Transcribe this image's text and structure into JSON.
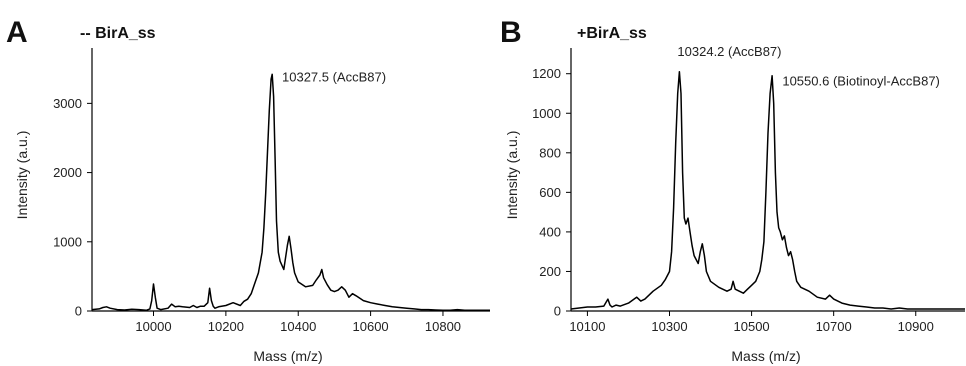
{
  "chart_data": [
    {
      "type": "line",
      "panel_label": "A",
      "title": "-- BirA_ss",
      "xlabel": "Mass (m/z)",
      "ylabel": "Intensity (a.u.)",
      "xlim": [
        9830,
        10930
      ],
      "ylim": [
        0,
        3800
      ],
      "xticks": [
        10000,
        10200,
        10400,
        10600,
        10800
      ],
      "yticks": [
        0,
        1000,
        2000,
        3000
      ],
      "grid": false,
      "annotations": [
        {
          "text": "10327.5 (AccB87)",
          "x": 10327.5,
          "y": 3400
        }
      ],
      "series": [
        {
          "x": [
            9830,
            9850,
            9860,
            9870,
            9880,
            9900,
            9920,
            9940,
            9960,
            9980,
            9990,
            9995,
            10000,
            10005,
            10010,
            10020,
            10040,
            10050,
            10060,
            10070,
            10080,
            10100,
            10110,
            10120,
            10130,
            10140,
            10150,
            10155,
            10160,
            10165,
            10170,
            10180,
            10200,
            10220,
            10240,
            10250,
            10260,
            10270,
            10280,
            10290,
            10300,
            10305,
            10310,
            10315,
            10320,
            10325,
            10328,
            10332,
            10336,
            10340,
            10345,
            10350,
            10360,
            10370,
            10375,
            10380,
            10385,
            10390,
            10400,
            10420,
            10440,
            10450,
            10460,
            10465,
            10470,
            10480,
            10490,
            10500,
            10510,
            10520,
            10530,
            10540,
            10550,
            10560,
            10580,
            10600,
            10620,
            10640,
            10660,
            10680,
            10700,
            10720,
            10740,
            10760,
            10780,
            10800,
            10820,
            10840,
            10860,
            10880,
            10900,
            10930
          ],
          "y": [
            20,
            30,
            50,
            60,
            40,
            20,
            15,
            25,
            20,
            10,
            30,
            150,
            390,
            200,
            40,
            20,
            40,
            100,
            60,
            70,
            60,
            50,
            80,
            50,
            70,
            70,
            120,
            330,
            150,
            70,
            40,
            60,
            80,
            120,
            80,
            140,
            170,
            250,
            400,
            550,
            850,
            1200,
            1700,
            2300,
            2900,
            3350,
            3420,
            3100,
            2200,
            1300,
            850,
            720,
            600,
            950,
            1080,
            900,
            700,
            550,
            420,
            350,
            370,
            450,
            520,
            600,
            480,
            380,
            300,
            280,
            300,
            350,
            300,
            200,
            250,
            220,
            150,
            120,
            100,
            80,
            60,
            50,
            40,
            30,
            20,
            20,
            15,
            10,
            10,
            20,
            10,
            10,
            10,
            10
          ]
        }
      ]
    },
    {
      "type": "line",
      "panel_label": "B",
      "title": "+BirA_ss",
      "xlabel": "Mass (m/z)",
      "ylabel": "Intensity (a.u.)",
      "xlim": [
        10060,
        11020
      ],
      "ylim": [
        0,
        1330
      ],
      "xticks": [
        10100,
        10300,
        10500,
        10700,
        10900
      ],
      "yticks": [
        0,
        200,
        400,
        600,
        800,
        1000,
        1200
      ],
      "grid": false,
      "annotations": [
        {
          "text": "10324.2 (AccB87)",
          "x": 10324.2,
          "y": 1208
        },
        {
          "text": "10550.6 (Biotinoyl-AccB87)",
          "x": 10550.6,
          "y": 1190
        }
      ],
      "series": [
        {
          "x": [
            10060,
            10080,
            10100,
            10120,
            10140,
            10150,
            10155,
            10160,
            10170,
            10180,
            10200,
            10220,
            10230,
            10240,
            10260,
            10280,
            10290,
            10300,
            10305,
            10310,
            10315,
            10320,
            10324,
            10328,
            10332,
            10336,
            10340,
            10345,
            10350,
            10355,
            10360,
            10370,
            10375,
            10380,
            10385,
            10390,
            10400,
            10420,
            10440,
            10450,
            10455,
            10460,
            10470,
            10480,
            10490,
            10500,
            10510,
            10520,
            10525,
            10530,
            10535,
            10540,
            10545,
            10550,
            10554,
            10558,
            10562,
            10566,
            10570,
            10575,
            10580,
            10585,
            10590,
            10595,
            10600,
            10605,
            10610,
            10620,
            10640,
            10660,
            10680,
            10690,
            10700,
            10720,
            10740,
            10760,
            10780,
            10800,
            10820,
            10840,
            10860,
            10880,
            10900,
            10920,
            10940,
            10960,
            10980,
            11000,
            11020
          ],
          "y": [
            10,
            15,
            20,
            20,
            25,
            60,
            30,
            20,
            30,
            25,
            40,
            70,
            50,
            60,
            100,
            130,
            160,
            200,
            300,
            520,
            850,
            1100,
            1210,
            1100,
            700,
            470,
            440,
            470,
            400,
            330,
            280,
            240,
            300,
            340,
            280,
            200,
            150,
            120,
            100,
            110,
            150,
            110,
            100,
            90,
            110,
            130,
            150,
            200,
            260,
            350,
            600,
            900,
            1100,
            1190,
            1050,
            700,
            500,
            420,
            400,
            360,
            380,
            320,
            280,
            300,
            260,
            200,
            150,
            120,
            100,
            70,
            60,
            80,
            60,
            40,
            30,
            25,
            20,
            15,
            15,
            10,
            15,
            10,
            10,
            10,
            10,
            10,
            10,
            10,
            10
          ]
        }
      ]
    }
  ]
}
